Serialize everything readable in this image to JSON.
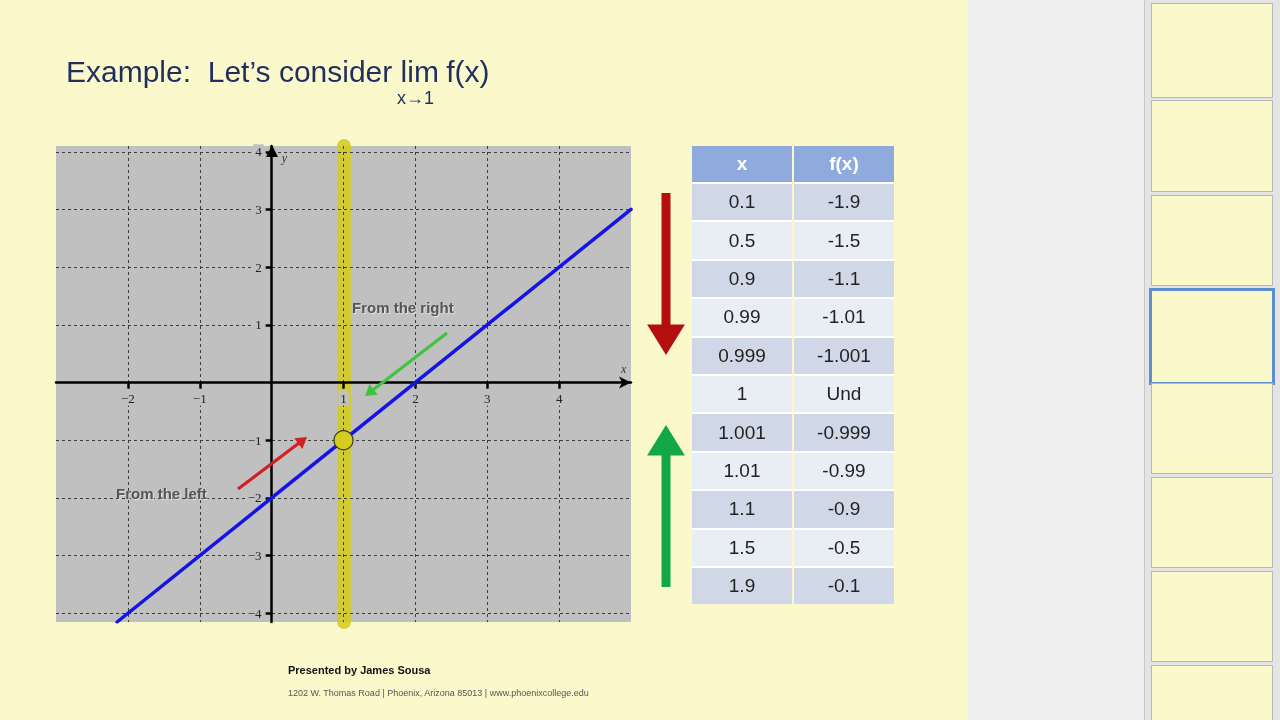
{
  "chart_data": [
    {
      "type": "line",
      "title": "Example:  Let’s consider lim$_{x→1}$ f(x)",
      "xlabel": "x",
      "ylabel": "y",
      "series": [
        {
          "x": [
            -2.15,
            5
          ],
          "values": [
            -4.15,
            3
          ],
          "color": "#1414e6"
        },
        {
          "type": "scatter",
          "x": [
            1
          ],
          "values": [
            -1
          ],
          "color": "#d4cd1e",
          "marker": "circle"
        }
      ],
      "xlim": [
        -3,
        5
      ],
      "ylim": [
        -4.15,
        4.1
      ],
      "xticks": [
        {
          "value": -2,
          "label": "−2"
        },
        {
          "value": -1,
          "label": "−1"
        },
        1,
        2,
        3,
        4
      ],
      "yticks": [
        {
          "value": -4,
          "label": "−4"
        },
        {
          "value": -3,
          "label": "−3"
        },
        {
          "value": -2,
          "label": "−2"
        },
        {
          "value": -1,
          "label": "−1"
        },
        1,
        2,
        3,
        4
      ],
      "grid": true,
      "marker": "none",
      "line_style": "solid",
      "ref_lines": [
        {
          "axis": "x",
          "value": 1,
          "color": "#d2cb1c"
        }
      ],
      "annotations": [
        "From the right",
        "From the left",
        "Presented by James Sousa",
        "1202 W. Thomas Road | Phoenix, Arizona 85013 | www.phoenixcollege.edu"
      ]
    },
    {
      "type": "other",
      "xlabel": "x",
      "ylabel": "f(x)",
      "categories": [
        "0.1",
        "0.5",
        "0.9",
        "0.99",
        "0.999",
        "1",
        "1.001",
        "1.01",
        "1.1",
        "1.5",
        "1.9"
      ],
      "value_labels": [
        "-1.9",
        "-1.5",
        "-1.1",
        "-1.01",
        "-1.001",
        "Und",
        "-0.999",
        "-0.99",
        "-0.9",
        "-0.5",
        "-0.1"
      ]
    }
  ]
}
